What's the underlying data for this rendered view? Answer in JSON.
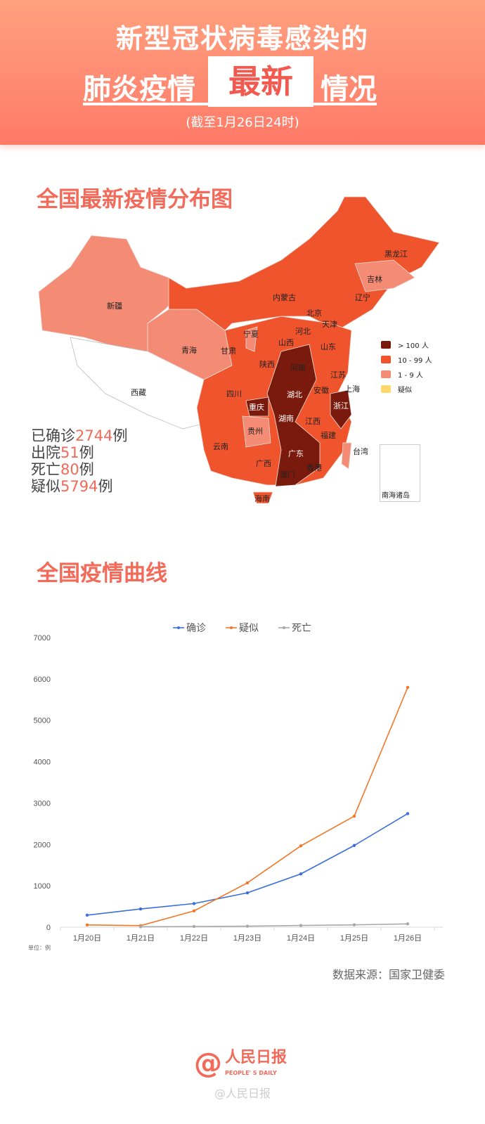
{
  "header": {
    "title_line1": "新型冠状病毒感染的",
    "title_line2a": "肺炎疫情",
    "title_highlight": "最新",
    "title_line2b": "情况",
    "subtitle": "(截至1月26日24时)"
  },
  "map_section": {
    "title": "全国最新疫情分布图",
    "legend": [
      {
        "label": "> 100 人",
        "color": "#7a1a0c"
      },
      {
        "label": "10 - 99 人",
        "color": "#f0542c"
      },
      {
        "label": "1 - 9 人",
        "color": "#f48b74"
      },
      {
        "label": "疑似",
        "color": "#ffd86b"
      }
    ],
    "provinces": [
      "新疆",
      "西藏",
      "青海",
      "甘肃",
      "宁夏",
      "内蒙古",
      "黑龙江",
      "吉林",
      "辽宁",
      "北京",
      "天津",
      "河北",
      "山西",
      "山东",
      "陕西",
      "河南",
      "江苏",
      "安徽",
      "上海",
      "四川",
      "重庆",
      "湖北",
      "浙江",
      "湖南",
      "江西",
      "贵州",
      "云南",
      "福建",
      "广西",
      "广东",
      "台湾",
      "澳门",
      "香港",
      "海南"
    ],
    "inset_label": "南海诸岛",
    "stats": [
      {
        "pre": "已确诊",
        "num": "2744",
        "post": "例"
      },
      {
        "pre": "出院",
        "num": "51",
        "post": "例"
      },
      {
        "pre": "死亡",
        "num": "80",
        "post": "例"
      },
      {
        "pre": "疑似",
        "num": "5794",
        "post": "例"
      }
    ]
  },
  "chart_section": {
    "title": "全国疫情曲线",
    "source": "数据来源：国家卫健委"
  },
  "chart_data": {
    "type": "line",
    "title": "",
    "xlabel": "",
    "ylabel": "",
    "unit_label": "单位：例",
    "categories": [
      "1月20日",
      "1月21日",
      "1月22日",
      "1月23日",
      "1月24日",
      "1月25日",
      "1月26日"
    ],
    "yticks": [
      "0",
      "1000",
      "2000",
      "3000",
      "4000",
      "5000",
      "6000",
      "7000"
    ],
    "ylim": [
      0,
      7000
    ],
    "grid": false,
    "legend_position": "top",
    "series": [
      {
        "name": "确诊",
        "color": "#3a6fd8",
        "values": [
          291,
          440,
          571,
          830,
          1287,
          1975,
          2744
        ]
      },
      {
        "name": "疑似",
        "color": "#f07828",
        "values": [
          54,
          37,
          393,
          1072,
          1965,
          2684,
          5794
        ]
      },
      {
        "name": "死亡",
        "color": "#a8a8a8",
        "values": [
          null,
          9,
          17,
          25,
          41,
          56,
          80
        ]
      }
    ]
  },
  "footer": {
    "logo_cn": "人民日报",
    "logo_en": "PEOPLE' S DAILY",
    "watermark": "@人民日报"
  }
}
